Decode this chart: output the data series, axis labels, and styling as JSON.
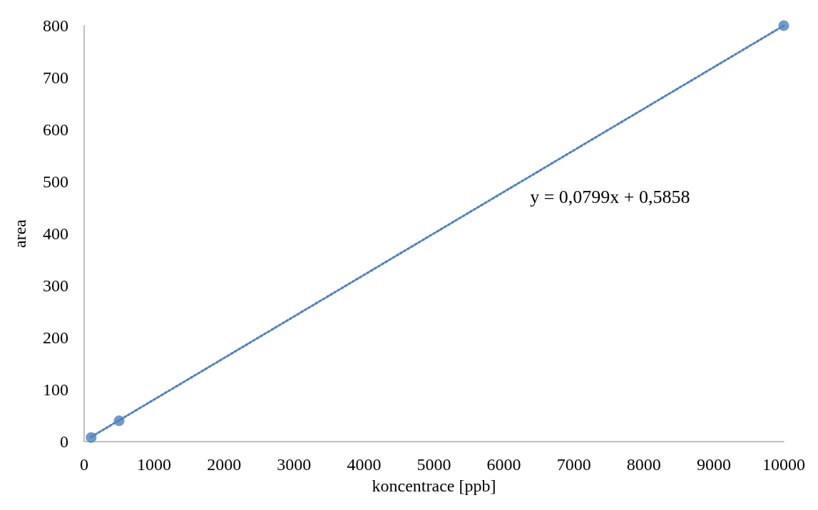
{
  "chart_data": {
    "type": "scatter",
    "xlabel": "koncentrace [ppb]",
    "ylabel": "area",
    "xlim": [
      0,
      10000
    ],
    "xticks": [
      0,
      1000,
      2000,
      3000,
      4000,
      5000,
      6000,
      7000,
      8000,
      9000,
      10000
    ],
    "ylim": [
      0,
      800
    ],
    "yticks": [
      0,
      100,
      200,
      300,
      400,
      500,
      600,
      700,
      800
    ],
    "grid": false,
    "marker": "circle",
    "annotations": [
      "y = 0,0799x + 0,5858"
    ],
    "series": [
      {
        "type": "scatter",
        "color": "#4f81bd",
        "x": [
          100,
          500,
          10000
        ],
        "values": [
          8,
          40,
          800
        ]
      },
      {
        "type": "line",
        "color": "#4f81bd",
        "line_style": "dotted",
        "marker": "none",
        "x": [
          100,
          10000
        ],
        "values": [
          9,
          800
        ]
      }
    ]
  }
}
